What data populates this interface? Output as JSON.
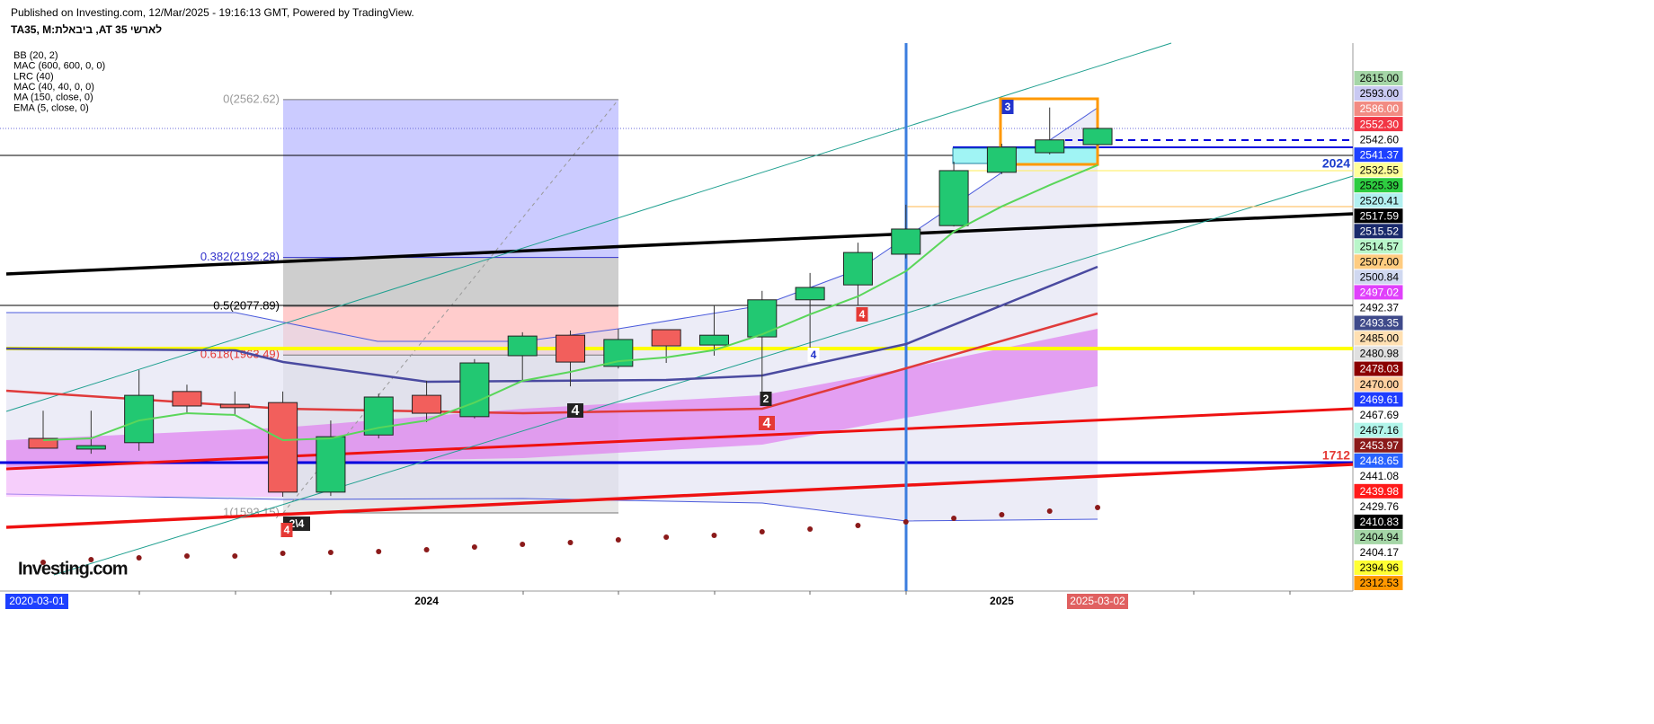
{
  "header": {
    "published": "Published on Investing.com, 12/Mar/2025 - 19:16:13 GMT, Powered by TradingView.",
    "symbol": "TA35, M:ביבאלת ,AT 35 לארשי"
  },
  "indicators": [
    "BB (20, 2)",
    "MAC (600, 600, 0, 0)",
    "LRC (40)",
    "MAC (40, 40, 0, 0)",
    "MA (150, close, 0)",
    "EMA (5, close, 0)"
  ],
  "logo": "Investing.com",
  "chart_data": {
    "type": "candlestick",
    "categories": [
      null,
      null,
      null,
      null,
      null,
      null,
      null,
      null,
      "2024",
      null,
      null,
      null,
      null,
      null,
      null,
      null,
      null,
      null,
      null,
      null,
      "2025",
      null,
      null
    ],
    "open": [
      1768,
      1743,
      1758,
      1878,
      1848,
      1852,
      1642,
      1776,
      1869,
      1819,
      1962,
      2010,
      1937,
      2023,
      1987,
      2006,
      2093,
      2128,
      2200,
      2267,
      2392,
      2438,
      2457
    ],
    "high": [
      1833,
      1833,
      1928,
      1894,
      1878,
      1878,
      1810,
      1873,
      1903,
      1954,
      2017,
      2021,
      2025,
      2023,
      2080,
      2114,
      2156,
      2227,
      2316,
      2417,
      2459,
      2544,
      2497
    ],
    "low": [
      1745,
      1732,
      1739,
      1827,
      1823,
      1631,
      1633,
      1768,
      1806,
      1815,
      1903,
      1890,
      1932,
      1945,
      1962,
      1869,
      1979,
      2080,
      2190,
      2265,
      2388,
      2434,
      2457
    ],
    "close": [
      1745,
      1751,
      1869,
      1844,
      1840,
      1642,
      1772,
      1865,
      1827,
      1945,
      2008,
      1947,
      2000,
      1985,
      2010,
      2093,
      2122,
      2204,
      2259,
      2396,
      2451,
      2468,
      2495
    ],
    "up_color": "#22c872",
    "down_color": "#f25f5c",
    "ema": {
      "color": "#5ad65a",
      "values": [
        1764,
        1768,
        1810,
        1827,
        1823,
        1764,
        1768,
        1793,
        1810,
        1852,
        1903,
        1924,
        1949,
        1958,
        1975,
        2012,
        2059,
        2101,
        2160,
        2253,
        2312,
        2362,
        2409
      ]
    },
    "ylim": [
      1410,
      2695
    ],
    "fib": [
      {
        "label": "0(2562.62)",
        "value": 2562.62,
        "color": "#c8c8ff"
      },
      {
        "label": "0.382(2192.28)",
        "value": 2192.28,
        "color": "#cbcbcb"
      },
      {
        "label": "0.5(2077.89)",
        "value": 2077.89,
        "color": "#ffc9c9"
      },
      {
        "label": "0.618(1963.49)",
        "value": 1963.49,
        "color": "#e6e6e6"
      },
      {
        "label": "1(1593.15)",
        "value": 1593.15,
        "color": "#e6e6e6"
      }
    ],
    "price_tags": [
      {
        "label": "2615.00",
        "bg": "#a5d6a7",
        "fg": "#000"
      },
      {
        "label": "2593.00",
        "bg": "#c9c9f2",
        "fg": "#000"
      },
      {
        "label": "2586.00",
        "bg": "#f28b82",
        "fg": "#fff"
      },
      {
        "label": "2552.30",
        "bg": "#f23645",
        "fg": "#fff"
      },
      {
        "label": "2542.60",
        "bg": "#ffffff",
        "fg": "#000"
      },
      {
        "label": "2541.37",
        "bg": "#1e40ff",
        "fg": "#fff"
      },
      {
        "label": "2532.55",
        "bg": "#ffff99",
        "fg": "#000"
      },
      {
        "label": "2525.39",
        "bg": "#2ecc40",
        "fg": "#000"
      },
      {
        "label": "2520.41",
        "bg": "#b2f0f0",
        "fg": "#000"
      },
      {
        "label": "2517.59",
        "bg": "#000000",
        "fg": "#fff"
      },
      {
        "label": "2515.52",
        "bg": "#1a2a6c",
        "fg": "#fff"
      },
      {
        "label": "2514.57",
        "bg": "#b9f6ca",
        "fg": "#000"
      },
      {
        "label": "2507.00",
        "bg": "#ffcc80",
        "fg": "#000"
      },
      {
        "label": "2500.84",
        "bg": "#d0d8f0",
        "fg": "#000"
      },
      {
        "label": "2497.02",
        "bg": "#e040fb",
        "fg": "#fff"
      },
      {
        "label": "2492.37",
        "bg": "#ffffff",
        "fg": "#000"
      },
      {
        "label": "2493.35",
        "bg": "#3f4a8a",
        "fg": "#fff"
      },
      {
        "label": "2485.00",
        "bg": "#ffe0b2",
        "fg": "#000"
      },
      {
        "label": "2480.98",
        "bg": "#e0e0e0",
        "fg": "#000"
      },
      {
        "label": "2478.03",
        "bg": "#8b0000",
        "fg": "#fff"
      },
      {
        "label": "2470.00",
        "bg": "#ffd0a0",
        "fg": "#000"
      },
      {
        "label": "2469.61",
        "bg": "#1e3cff",
        "fg": "#fff"
      },
      {
        "label": "2467.69",
        "bg": "#ffffff",
        "fg": "#000"
      },
      {
        "label": "2467.16",
        "bg": "#b2f5ea",
        "fg": "#000"
      },
      {
        "label": "2453.97",
        "bg": "#8b1a1a",
        "fg": "#fff"
      },
      {
        "label": "2448.65",
        "bg": "#2962ff",
        "fg": "#fff"
      },
      {
        "label": "2441.08",
        "bg": "#ffffff",
        "fg": "#000"
      },
      {
        "label": "2439.98",
        "bg": "#ff1a1a",
        "fg": "#fff"
      },
      {
        "label": "2429.76",
        "bg": "#ffffff",
        "fg": "#000"
      },
      {
        "label": "2410.83",
        "bg": "#000000",
        "fg": "#fff"
      },
      {
        "label": "2404.94",
        "bg": "#a5d6a7",
        "fg": "#000"
      },
      {
        "label": "2404.17",
        "bg": "#ffffff",
        "fg": "#000"
      },
      {
        "label": "2394.96",
        "bg": "#ffff33",
        "fg": "#000"
      },
      {
        "label": "2312.53",
        "bg": "#ff9800",
        "fg": "#000"
      }
    ],
    "annotations": [
      "2024",
      "1712"
    ],
    "wave_labels": [
      "3",
      "4",
      "4",
      "4",
      "2",
      "4",
      "2\\4",
      "4"
    ],
    "x_start_label": "2020-03-01",
    "x_end_label": "2025-03-02"
  }
}
